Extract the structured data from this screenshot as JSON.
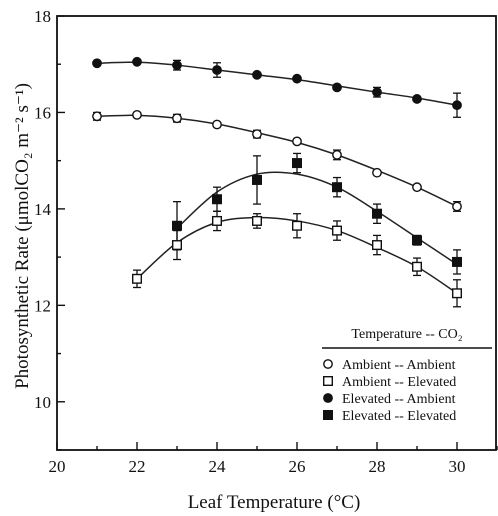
{
  "chart_data": {
    "type": "scatter",
    "xlabel": "Leaf Temperature (°C)",
    "ylabel": "Photosynthetic Rate (μmolCO₂ m⁻² s⁻¹)",
    "xlim": [
      20,
      31
    ],
    "ylim": [
      9,
      18
    ],
    "xticks": [
      20,
      22,
      24,
      26,
      28,
      30
    ],
    "yticks": [
      10,
      12,
      14,
      16,
      18
    ],
    "grid": false,
    "legend_title": "Temperature -- CO₂",
    "legend_placement": "bottom-right",
    "series": [
      {
        "name": "Ambient -- Ambient",
        "marker": "open-circle",
        "x": [
          21,
          22,
          23,
          24,
          25,
          26,
          27,
          28,
          29,
          30
        ],
        "y": [
          15.92,
          15.95,
          15.88,
          15.75,
          15.55,
          15.4,
          15.12,
          14.75,
          14.45,
          14.05
        ],
        "err": [
          0.08,
          0.05,
          0.08,
          0.05,
          0.08,
          0.05,
          0.1,
          0.06,
          0.05,
          0.1
        ]
      },
      {
        "name": "Ambient -- Elevated",
        "marker": "open-square",
        "x": [
          22,
          23,
          24,
          25,
          26,
          27,
          28,
          29,
          30
        ],
        "y": [
          12.55,
          13.25,
          13.75,
          13.75,
          13.65,
          13.55,
          13.25,
          12.8,
          12.25
        ],
        "err": [
          0.18,
          0.3,
          0.2,
          0.15,
          0.25,
          0.2,
          0.2,
          0.18,
          0.28
        ]
      },
      {
        "name": "Elevated -- Ambient",
        "marker": "filled-circle",
        "x": [
          21,
          22,
          23,
          24,
          25,
          26,
          27,
          28,
          29,
          30
        ],
        "y": [
          17.02,
          17.05,
          16.98,
          16.88,
          16.78,
          16.7,
          16.52,
          16.42,
          16.28,
          16.15
        ],
        "err": [
          0.05,
          0.05,
          0.1,
          0.15,
          0.05,
          0.05,
          0.05,
          0.1,
          0.05,
          0.25
        ]
      },
      {
        "name": "Elevated -- Elevated",
        "marker": "filled-square",
        "x": [
          23,
          24,
          25,
          26,
          27,
          28,
          29,
          30
        ],
        "y": [
          13.65,
          14.2,
          14.6,
          14.95,
          14.45,
          13.9,
          13.35,
          12.9
        ],
        "err": [
          0.5,
          0.25,
          0.5,
          0.2,
          0.2,
          0.2,
          0.1,
          0.25
        ]
      }
    ],
    "fits": [
      {
        "series": 0,
        "x": [
          21,
          22,
          23,
          24,
          25,
          26,
          27,
          28,
          29,
          30
        ],
        "y": [
          15.92,
          15.94,
          15.88,
          15.76,
          15.58,
          15.38,
          15.12,
          14.8,
          14.45,
          14.05
        ]
      },
      {
        "series": 1,
        "x": [
          22,
          23,
          24,
          25,
          26,
          27,
          28,
          29,
          30
        ],
        "y": [
          12.55,
          13.3,
          13.72,
          13.82,
          13.75,
          13.55,
          13.2,
          12.8,
          12.25
        ]
      },
      {
        "series": 2,
        "x": [
          21,
          22,
          23,
          24,
          25,
          26,
          27,
          28,
          29,
          30
        ],
        "y": [
          17.02,
          17.04,
          16.98,
          16.88,
          16.78,
          16.68,
          16.55,
          16.42,
          16.3,
          16.15
        ]
      },
      {
        "series": 3,
        "x": [
          23,
          24,
          25,
          26,
          27,
          28,
          29,
          30
        ],
        "y": [
          13.6,
          14.35,
          14.72,
          14.72,
          14.45,
          13.95,
          13.4,
          12.85
        ]
      }
    ]
  }
}
